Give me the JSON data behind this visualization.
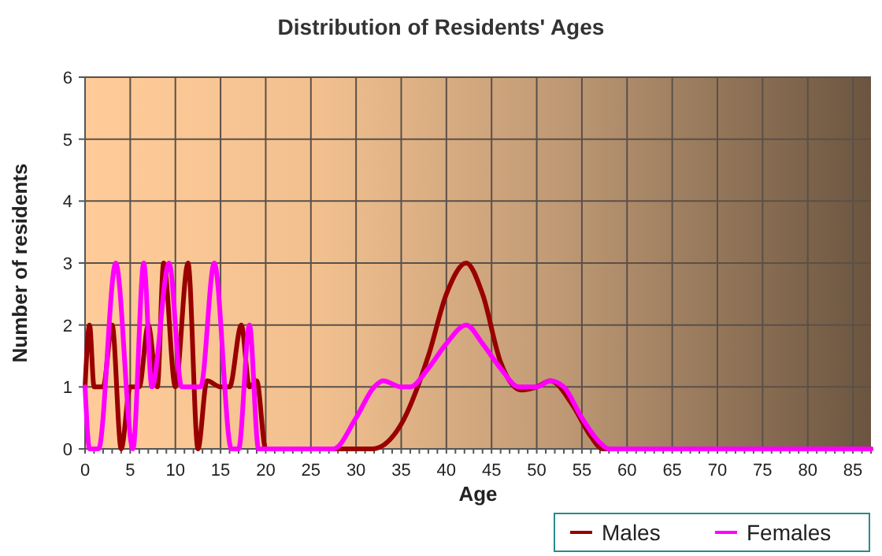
{
  "chart_data": {
    "type": "line",
    "title": "Distribution of Residents' Ages",
    "xlabel": "Age",
    "ylabel": "Number of residents",
    "xlim": [
      0,
      87
    ],
    "xticks": [
      0,
      5,
      10,
      15,
      20,
      25,
      30,
      35,
      40,
      45,
      50,
      55,
      60,
      65,
      70,
      75,
      80,
      85
    ],
    "ylim": [
      0,
      6
    ],
    "yticks": [
      0,
      1,
      2,
      3,
      4,
      5,
      6
    ],
    "grid": true,
    "legend": "bottom right",
    "marker": "none",
    "line_style": "solid",
    "series": [
      {
        "name": "Males",
        "color": "#990000",
        "x": [
          0,
          0.5,
          1,
          2,
          3,
          4,
          5,
          6,
          7,
          8,
          8.7,
          10,
          11.4,
          12.5,
          13.5,
          15,
          16,
          17.3,
          18.2,
          19,
          20,
          25,
          31.8,
          35,
          38,
          40,
          42.2,
          44,
          46,
          48.3,
          50,
          51.5,
          54,
          56,
          57.3,
          60,
          87
        ],
        "values": [
          1,
          2,
          1,
          1,
          2,
          0,
          1,
          1,
          2,
          1,
          3,
          1,
          3,
          0,
          1.1,
          1,
          1,
          2,
          1,
          1.1,
          0,
          0,
          0,
          0.4,
          1.5,
          2.5,
          3,
          2.5,
          1.4,
          0.95,
          1,
          1.1,
          0.7,
          0.2,
          0,
          0,
          0
        ]
      },
      {
        "name": "Females",
        "color": "#ff00ff",
        "x": [
          0,
          0.5,
          1.5,
          3.4,
          5.3,
          6.5,
          7.4,
          9.3,
          10.7,
          11.7,
          12.8,
          14.3,
          16.2,
          17,
          18.2,
          19.2,
          27.5,
          30,
          32,
          33,
          35,
          36,
          38,
          40,
          42.2,
          44,
          46,
          48,
          50,
          51.5,
          53,
          55,
          57,
          58,
          87
        ],
        "values": [
          1,
          0,
          0,
          3,
          0,
          3,
          1,
          3,
          1,
          1,
          1,
          3,
          0,
          0,
          2,
          0,
          0,
          0.5,
          1,
          1.1,
          1,
          1,
          1.3,
          1.7,
          2,
          1.7,
          1.3,
          1,
          1,
          1.1,
          1,
          0.5,
          0.1,
          0,
          0
        ]
      }
    ]
  }
}
